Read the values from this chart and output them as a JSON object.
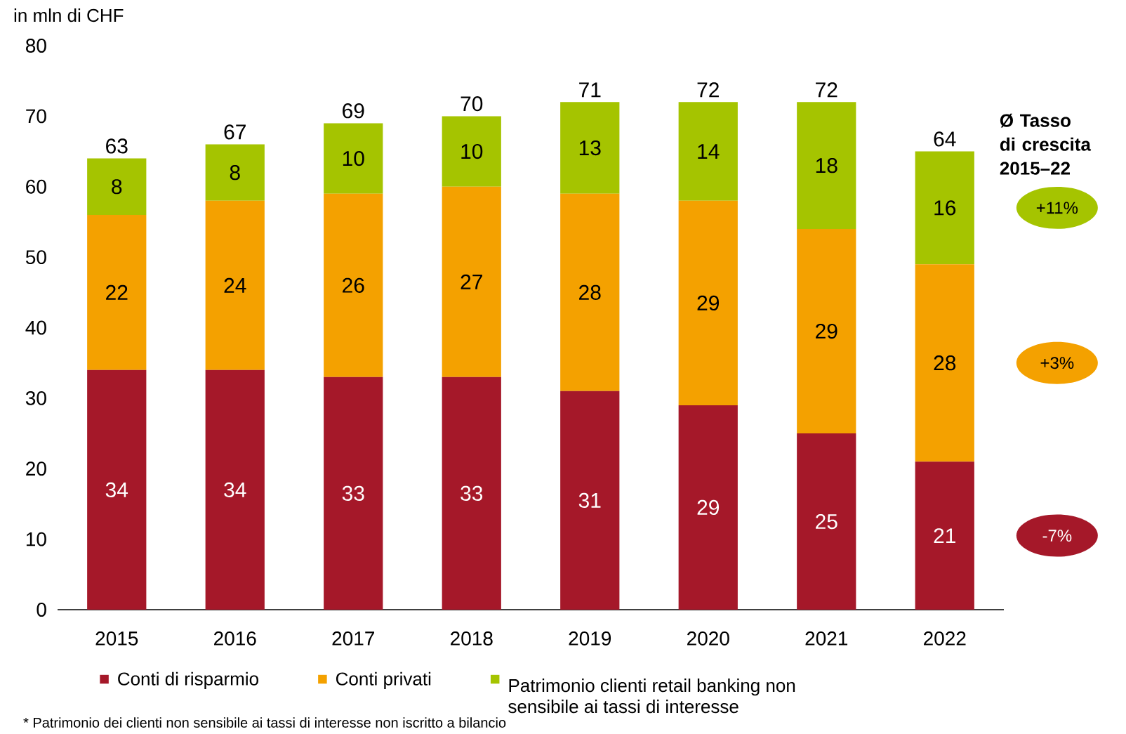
{
  "chart_data": {
    "type": "bar",
    "stacked": true,
    "ylabel": "in mln di CHF",
    "categories": [
      "2015",
      "2016",
      "2017",
      "2018",
      "2019",
      "2020",
      "2021",
      "2022"
    ],
    "series": [
      {
        "name": "Conti di risparmio",
        "color": "#a51829",
        "values": [
          34,
          34,
          33,
          33,
          31,
          29,
          25,
          21
        ]
      },
      {
        "name": "Conti privati",
        "color": "#f4a100",
        "values": [
          22,
          24,
          26,
          27,
          28,
          29,
          29,
          28
        ]
      },
      {
        "name": "Patrimonio clienti retail banking non sensibile ai tassi di interesse",
        "color": "#a5c400",
        "values": [
          8,
          8,
          10,
          10,
          13,
          14,
          18,
          16
        ]
      }
    ],
    "totals": [
      "63",
      "67",
      "69",
      "70",
      "71",
      "72",
      "72",
      "64"
    ],
    "data_labels": true,
    "ylim": [
      0,
      80
    ],
    "yticks": [
      0,
      10,
      20,
      30,
      40,
      50,
      60,
      70,
      80
    ],
    "grid": false,
    "legend": "bottom",
    "annotations": [
      "**Ø Tasso di crescita 2015–22**",
      "-7%",
      "+3%",
      "+11%",
      "* Patrimonio dei clienti non sensibile ai tassi di interesse non iscritto a bilancio"
    ]
  }
}
